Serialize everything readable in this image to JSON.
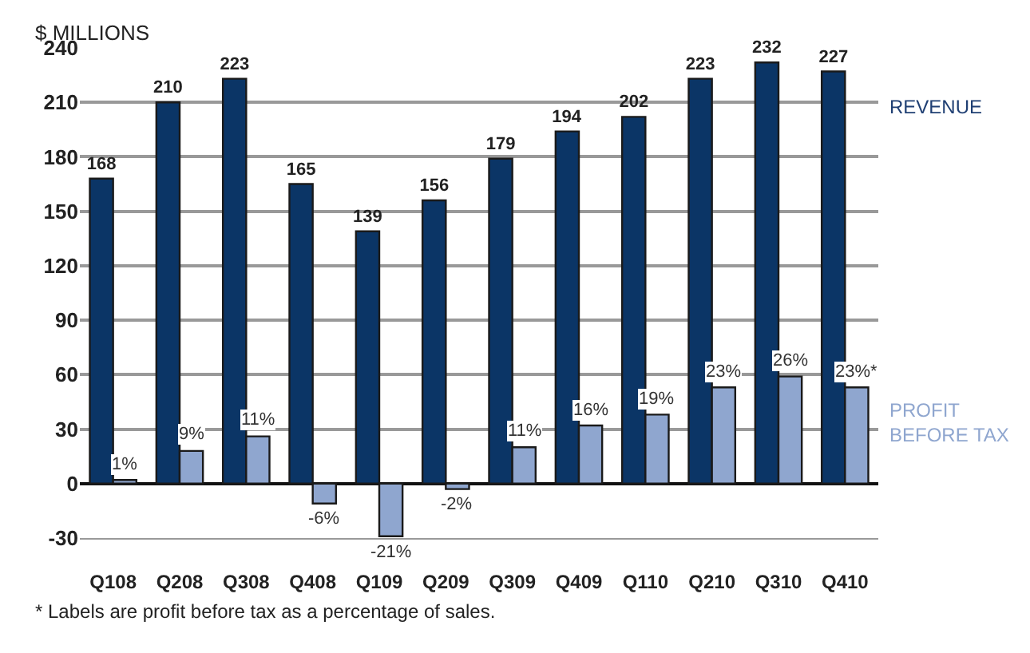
{
  "chart_data": {
    "type": "bar",
    "ylabel": "$ MILLIONS",
    "categories": [
      "Q108",
      "Q208",
      "Q308",
      "Q408",
      "Q109",
      "Q209",
      "Q309",
      "Q409",
      "Q110",
      "Q210",
      "Q310",
      "Q410"
    ],
    "series": [
      {
        "name": "REVENUE",
        "color": "#0b3566",
        "values": [
          168,
          210,
          223,
          165,
          139,
          156,
          179,
          194,
          202,
          223,
          232,
          227
        ],
        "value_labels": [
          "168",
          "210",
          "223",
          "165",
          "139",
          "156",
          "179",
          "194",
          "202",
          "223",
          "232",
          "227"
        ]
      },
      {
        "name": "PROFIT BEFORE TAX",
        "color": "#8fa6cf",
        "values": [
          2,
          18,
          26,
          -11,
          -29,
          -3,
          20,
          32,
          38,
          53,
          59,
          53
        ]
      }
    ],
    "ylim": [
      -30,
      240
    ],
    "yticks": [
      -30,
      0,
      30,
      60,
      90,
      120,
      150,
      180,
      210,
      240
    ],
    "grid": "y",
    "annotations": [
      {
        "text": "1%",
        "x": "Q108",
        "y": 2
      },
      {
        "text": "9%",
        "x": "Q208",
        "y": 18
      },
      {
        "text": "11%",
        "x": "Q308",
        "y": 26
      },
      {
        "text": "-6%",
        "x": "Q408",
        "y": -11
      },
      {
        "text": "-21%",
        "x": "Q109",
        "y": -29
      },
      {
        "text": "-2%",
        "x": "Q209",
        "y": -3
      },
      {
        "text": "11%",
        "x": "Q309",
        "y": 20
      },
      {
        "text": "16%",
        "x": "Q409",
        "y": 32
      },
      {
        "text": "19%",
        "x": "Q110",
        "y": 38
      },
      {
        "text": "23%",
        "x": "Q210",
        "y": 53
      },
      {
        "text": "26%",
        "x": "Q310",
        "y": 59
      },
      {
        "text": "23%*",
        "x": "Q410",
        "y": 53
      },
      "* Labels are profit before tax as a percentage of sales."
    ]
  }
}
